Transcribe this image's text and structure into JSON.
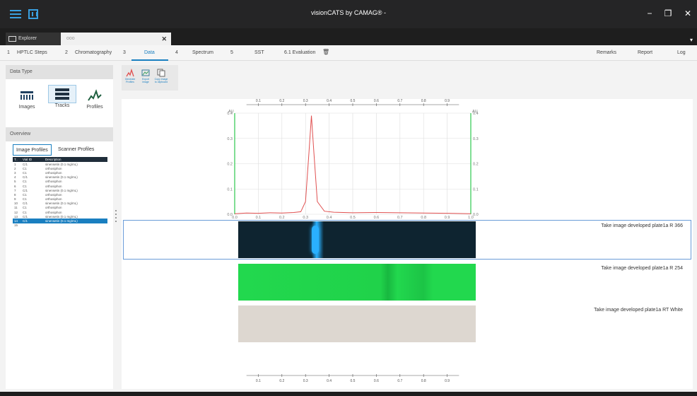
{
  "window": {
    "title": "visionCATS by CAMAG® -",
    "minimize": "−",
    "restore": "❐",
    "close": "✕"
  },
  "tabs": {
    "explorer": "Explorer",
    "document": "ooo",
    "document_close": "✕",
    "menu_arrow": "▾"
  },
  "nav": [
    {
      "num": "1",
      "label": "HPTLC Steps"
    },
    {
      "num": "2",
      "label": "Chromatography"
    },
    {
      "num": "3",
      "label": "Data"
    },
    {
      "num": "4",
      "label": "Spectrum"
    },
    {
      "num": "5",
      "label": "SST"
    },
    {
      "num": "",
      "label": "6.1 Evaluation"
    }
  ],
  "nav_right": {
    "remarks": "Remarks",
    "report": "Report",
    "log": "Log"
  },
  "data_type": {
    "title": "Data Type",
    "images": "Images",
    "tracks": "Tracks",
    "profiles": "Profiles"
  },
  "overview": {
    "title": "Overview",
    "tab_image": "Image Profiles",
    "tab_scanner": "Scanner Profiles",
    "headers": [
      "T..",
      "Vial ID",
      "Description"
    ],
    "rows": [
      [
        "1",
        "C/1",
        "sinensetin (0.1 mg/mL)"
      ],
      [
        "2",
        "C1",
        "orthosiphon"
      ],
      [
        "3",
        "C1",
        "orthosiphon"
      ],
      [
        "4",
        "C/1",
        "sinensetin (0.1 mg/mL)"
      ],
      [
        "5",
        "C1",
        "orthosiphon"
      ],
      [
        "6",
        "C1",
        "orthosiphon"
      ],
      [
        "7",
        "C/1",
        "sinensetin (0.1 mg/mL)"
      ],
      [
        "8",
        "C1",
        "orthosiphon"
      ],
      [
        "9",
        "C1",
        "orthosiphon"
      ],
      [
        "10",
        "C/1",
        "sinensetin (0.1 mg/mL)"
      ],
      [
        "11",
        "C1",
        "orthosiphon"
      ],
      [
        "12",
        "C1",
        "orthosiphon"
      ],
      [
        "13",
        "C/1",
        "sinensetin (0.1 mg/mL)"
      ],
      [
        "14",
        "C/1",
        "sinensetin (0.1 mg/mL)"
      ],
      [
        "15",
        "",
        ""
      ]
    ],
    "selected_row": 13
  },
  "toolbar": {
    "generate": "Generate Profiles",
    "export": "Export image",
    "copy": "Copy image to clipboard"
  },
  "chart_data": {
    "type": "line",
    "y_axis_label": "AU",
    "ylim": [
      0,
      0.4
    ],
    "yticks": [
      "0.4",
      "0.3",
      "0.2",
      "0.1",
      "0.0"
    ],
    "xlim": [
      0,
      1.0
    ],
    "xticks": [
      "0.0",
      "0.1",
      "0.2",
      "0.3",
      "0.4",
      "0.5",
      "0.6",
      "0.7",
      "0.8",
      "0.9",
      "1.0"
    ],
    "top_ticks": [
      "0.1",
      "0.2",
      "0.3",
      "0.4",
      "0.5",
      "0.6",
      "0.7",
      "0.8",
      "0.9"
    ],
    "series": [
      {
        "color": "#e05050",
        "x": [
          0.0,
          0.05,
          0.1,
          0.15,
          0.2,
          0.25,
          0.28,
          0.3,
          0.315,
          0.325,
          0.335,
          0.35,
          0.38,
          0.42,
          0.5,
          0.6,
          0.7,
          0.8,
          0.9,
          1.0
        ],
        "y": [
          0.002,
          0.005,
          0.004,
          0.006,
          0.005,
          0.007,
          0.01,
          0.05,
          0.25,
          0.39,
          0.25,
          0.05,
          0.012,
          0.008,
          0.006,
          0.007,
          0.006,
          0.005,
          0.004,
          0.002
        ]
      }
    ]
  },
  "images": [
    {
      "caption": "Take image developed plate1a R 366",
      "color": "#0e2430",
      "band": "#2ab0ff"
    },
    {
      "caption": "Take image developed plate1a R 254",
      "color": "#20e050",
      "band": "#3ad0a0"
    },
    {
      "caption": "Take image developed plate1a RT White",
      "color": "#ddd7d0",
      "band": ""
    }
  ],
  "bottom_ticks": [
    "0.1",
    "0.2",
    "0.3",
    "0.4",
    "0.5",
    "0.6",
    "0.7",
    "0.8",
    "0.9"
  ]
}
